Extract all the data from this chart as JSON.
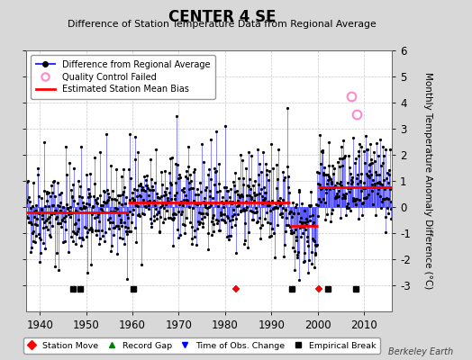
{
  "title": "CENTER 4 SE",
  "subtitle": "Difference of Station Temperature Data from Regional Average",
  "ylabel": "Monthly Temperature Anomaly Difference (°C)",
  "xlabel_years": [
    1940,
    1950,
    1960,
    1970,
    1980,
    1990,
    2000,
    2010
  ],
  "xlim": [
    1937,
    2016
  ],
  "ylim": [
    -4,
    6
  ],
  "yticks": [
    -3,
    -2,
    -1,
    0,
    1,
    2,
    3,
    4,
    5,
    6
  ],
  "background_color": "#d8d8d8",
  "plot_bg_color": "#ffffff",
  "line_color": "#3333ff",
  "dot_color": "#000000",
  "bias_color": "#ff0000",
  "qc_color": "#ff88cc",
  "watermark": "Berkeley Earth",
  "station_moves": [
    1982.3,
    2000.3
  ],
  "empirical_breaks": [
    1947.2,
    1948.8,
    1960.2,
    1994.5,
    2002.2,
    2008.2
  ],
  "bias_segments": [
    {
      "x": [
        1937,
        1959
      ],
      "y": [
        -0.22,
        -0.22
      ]
    },
    {
      "x": [
        1959,
        1994
      ],
      "y": [
        0.18,
        0.18
      ]
    },
    {
      "x": [
        1994,
        2000
      ],
      "y": [
        -0.72,
        -0.72
      ]
    },
    {
      "x": [
        2000,
        2016
      ],
      "y": [
        0.75,
        0.75
      ]
    }
  ],
  "qc_failed_points": [
    [
      2007.2,
      4.25
    ],
    [
      2008.5,
      3.55
    ]
  ],
  "seed": 42,
  "start_year": 1937,
  "end_year": 2015.9,
  "n_months": 948
}
